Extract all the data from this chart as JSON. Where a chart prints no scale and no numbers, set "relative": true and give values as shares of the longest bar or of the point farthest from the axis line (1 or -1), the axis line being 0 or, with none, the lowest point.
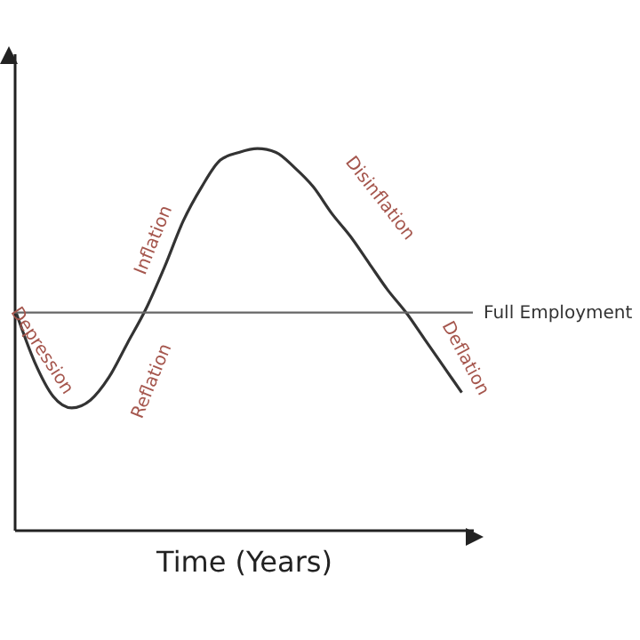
{
  "chart_data": {
    "type": "line",
    "relative": true,
    "xlabel": "Time (Years)",
    "categories": [
      null,
      null,
      null,
      null,
      null,
      null,
      null,
      null,
      null,
      null,
      null,
      null,
      null,
      null,
      null,
      null,
      null,
      null,
      null,
      null,
      null,
      null,
      null,
      null,
      null
    ],
    "series": [
      {
        "color": "#333333",
        "values": [
          0.57,
          0.44,
          0.35,
          0.32,
          0.34,
          0.4,
          0.49,
          0.58,
          0.69,
          0.81,
          0.9,
          0.97,
          0.99,
          1,
          0.99,
          0.95,
          0.9,
          0.83,
          0.77,
          0.7,
          0.63,
          0.57,
          0.5,
          0.43,
          0.36
        ]
      }
    ],
    "ref_lines": [
      {
        "axis": "y",
        "value": 0.57,
        "label": "Full Employment",
        "color": "#666666"
      }
    ],
    "annotations": [
      "Depression",
      "Inflation",
      "Reflation",
      "Disinflation",
      "Deflation"
    ],
    "grid": false,
    "marker": "none",
    "line_style": "solid"
  }
}
